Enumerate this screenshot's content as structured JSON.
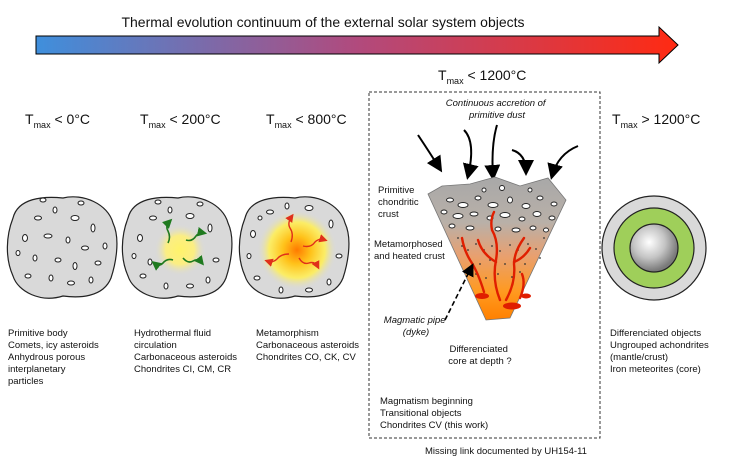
{
  "title": "Thermal evolution continuum of the external solar system objects",
  "colors": {
    "arrow_start": "#3f8fdc",
    "arrow_mid": "#b14a7d",
    "arrow_end": "#ff2a12",
    "body_fill": "#d9d9d9",
    "heat_core": "#ff8a00",
    "heat_glow": "#ffe85a",
    "fluid_arrow": "#1f7a1f",
    "heat_arrow": "#e0301a",
    "magma": "#e01e00",
    "mantle": "#9fcf5a"
  },
  "stages": [
    {
      "temp_prefix": "T",
      "temp_sub": "max",
      "temp_value": " < 0°C",
      "desc": [
        "Primitive body",
        "Comets, icy asteroids",
        "Anhydrous porous",
        "interplanetary",
        "particles"
      ]
    },
    {
      "temp_prefix": "T",
      "temp_sub": "max",
      "temp_value": " < 200°C",
      "desc": [
        "Hydrothermal fluid",
        "circulation",
        "Carbonaceous asteroids",
        "Chondrites CI, CM, CR"
      ]
    },
    {
      "temp_prefix": "T",
      "temp_sub": "max",
      "temp_value": " < 800°C",
      "desc": [
        "Metamorphism",
        "Carbonaceous asteroids",
        "Chondrites CO, CK, CV"
      ]
    },
    {
      "temp_prefix": "T",
      "temp_sub": "max",
      "temp_value": " < 1200°C",
      "desc": [
        "Magmatism beginning",
        "Transitional objects",
        "Chondrites CV (this work)"
      ]
    },
    {
      "temp_prefix": "T",
      "temp_sub": "max",
      "temp_value": " > 1200°C",
      "desc": [
        "Differenciated objects",
        "Ungrouped achondrites",
        "(mantle/crust)",
        "Iron meteorites (core)"
      ]
    }
  ],
  "section_labels": {
    "accretion": [
      "Continuous accretion of",
      "primitive dust"
    ],
    "crust": [
      "Primitive",
      "chondritic",
      "crust"
    ],
    "metamorphosed": [
      "Metamorphosed",
      "and heated crust"
    ],
    "pipe": [
      "Magmatic pipe",
      "(dyke)"
    ],
    "core": [
      "Differenciated",
      "core at depth ?"
    ]
  },
  "footer": "Missing link documented by UH154-11"
}
